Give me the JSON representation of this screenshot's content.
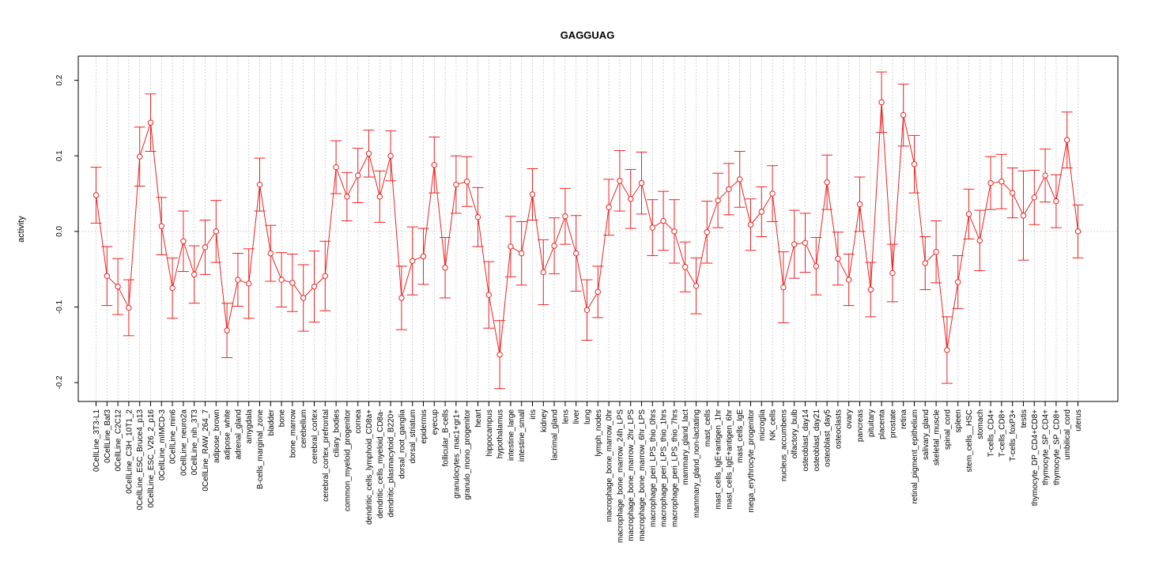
{
  "chart_data": {
    "type": "line",
    "title": "GAGGUAG",
    "xlabel": "",
    "ylabel": "activity",
    "ylim": [
      -0.225,
      0.232
    ],
    "yticks": [
      -0.2,
      -0.1,
      0.0,
      0.1,
      0.2
    ],
    "ytick_labels": [
      "-0.2",
      "-0.1",
      "0.0",
      "0.1",
      "0.2"
    ],
    "grid": true,
    "line_color": "#ee2222",
    "grid_color": "#c8c8c8",
    "categories": [
      "0CellLine_3T3-L1",
      "0CellLine_Baf3",
      "0CellLine_C2C12",
      "0CellLine_C3H_10T1_2",
      "0CellLine_ESC_Bruce4_p13",
      "0CellLine_ESC_V26_2_p16",
      "0CellLine_mIMCD-3",
      "0CellLine_min6",
      "0CellLine_neuro2a",
      "0CellLine_nih_3T3",
      "0CellLine_RAW_264_7",
      "adipose_brown",
      "adipose_white",
      "adrenal_gland",
      "amygdala",
      "B-cells_marginal_zone",
      "bladder",
      "bone",
      "bone_marrow",
      "cerebellum",
      "cerebral_cortex",
      "cerebral_cortex_prefrontal",
      "ciliary_bodies",
      "common_myeloid_progenitor",
      "cornea",
      "dendritic_cells_lymphoid_CD8a+",
      "dendritic_cells_myeloid_CD8a-",
      "dendritic_plasmacytoid_B220+",
      "dorsal_root_ganglia",
      "dorsal_striatum",
      "epidermis",
      "eyecup",
      "follicular_B-cells",
      "granulocytes_mac1+gr1+",
      "granulo_mono_progenitor",
      "heart",
      "hippocampus",
      "hypothalamus",
      "intestine_large",
      "intestine_small",
      "iris",
      "kidney",
      "lacrimal_gland",
      "lens",
      "liver",
      "lung",
      "lymph_nodes",
      "macrophage_bone_marrow_0hr",
      "macrophage_bone_marrow_24h_LPS",
      "macrophage_bone_marrow_2hr_LPS",
      "macrophage_bone_marrow_6hr_LPS",
      "macrophage_peri_LPS_thio_0hrs",
      "macrophage_peri_LPS_thio_1hrs",
      "macrophage_peri_LPS_thio_7hrs",
      "mammary_gland_lact",
      "mammary_gland_non-lactating",
      "mast_cells",
      "mast_cells_IgE+antigen_1hr",
      "mast_cells_IgE+antigen_6hr",
      "mast_cells_IgE",
      "mega_erythrocyte_progenitor",
      "microglia",
      "NK_cells",
      "nucleus_accumbens",
      "olfactory_bulb",
      "osteoblast_day14",
      "osteoblast_day21",
      "osteoblast_day5",
      "osteoclasts",
      "ovary",
      "pancreas",
      "pituitary",
      "placenta",
      "prostate",
      "retina",
      "retinal_pigment_epithelium",
      "salivary_gland",
      "skeletal_muscle",
      "spinal_cord",
      "spleen",
      "stem_cells__HSC",
      "stomach",
      "T-cells_CD4+",
      "T-cells_CD8+",
      "T-cells_foxP3+",
      "testis",
      "thymocyte_DP_CD4+CD8+",
      "thymocyte_SP_CD4+",
      "thymocyte_SP_CD8+",
      "umbilical_cord",
      "uterus"
    ],
    "values": [
      0.048,
      -0.059,
      -0.073,
      -0.101,
      0.099,
      0.144,
      0.007,
      -0.075,
      -0.013,
      -0.057,
      -0.021,
      0.0,
      -0.131,
      -0.064,
      -0.069,
      0.062,
      -0.029,
      -0.064,
      -0.068,
      -0.088,
      -0.073,
      -0.059,
      0.085,
      0.046,
      0.074,
      0.103,
      0.046,
      0.1,
      -0.088,
      -0.039,
      -0.033,
      0.088,
      -0.048,
      0.062,
      0.066,
      0.019,
      -0.084,
      -0.163,
      -0.02,
      -0.029,
      0.049,
      -0.054,
      -0.019,
      0.02,
      -0.029,
      -0.104,
      -0.08,
      0.032,
      0.067,
      0.043,
      0.064,
      0.005,
      0.014,
      0.0,
      -0.047,
      -0.072,
      -0.001,
      0.041,
      0.056,
      0.069,
      0.009,
      0.026,
      0.05,
      -0.074,
      -0.017,
      -0.015,
      -0.046,
      0.065,
      -0.036,
      -0.064,
      0.036,
      -0.077,
      0.171,
      -0.055,
      0.154,
      0.089,
      -0.042,
      -0.027,
      -0.157,
      -0.067,
      0.023,
      -0.012,
      0.064,
      0.066,
      0.051,
      0.021,
      0.045,
      0.074,
      0.04,
      0.121,
      0.0
    ],
    "err": [
      0.037,
      0.039,
      0.037,
      0.037,
      0.039,
      0.038,
      0.038,
      0.04,
      0.04,
      0.038,
      0.036,
      0.041,
      0.036,
      0.035,
      0.046,
      0.035,
      0.037,
      0.036,
      0.038,
      0.044,
      0.047,
      0.046,
      0.035,
      0.032,
      0.036,
      0.031,
      0.034,
      0.033,
      0.042,
      0.045,
      0.037,
      0.037,
      0.04,
      0.038,
      0.033,
      0.039,
      0.044,
      0.045,
      0.04,
      0.042,
      0.034,
      0.043,
      0.037,
      0.037,
      0.05,
      0.04,
      0.034,
      0.037,
      0.04,
      0.039,
      0.041,
      0.037,
      0.039,
      0.042,
      0.033,
      0.037,
      0.041,
      0.036,
      0.034,
      0.037,
      0.034,
      0.033,
      0.037,
      0.047,
      0.045,
      0.039,
      0.038,
      0.036,
      0.035,
      0.034,
      0.036,
      0.036,
      0.04,
      0.038,
      0.041,
      0.038,
      0.035,
      0.041,
      0.044,
      0.035,
      0.033,
      0.04,
      0.035,
      0.036,
      0.033,
      0.059,
      0.036,
      0.035,
      0.035,
      0.037,
      0.035
    ]
  }
}
